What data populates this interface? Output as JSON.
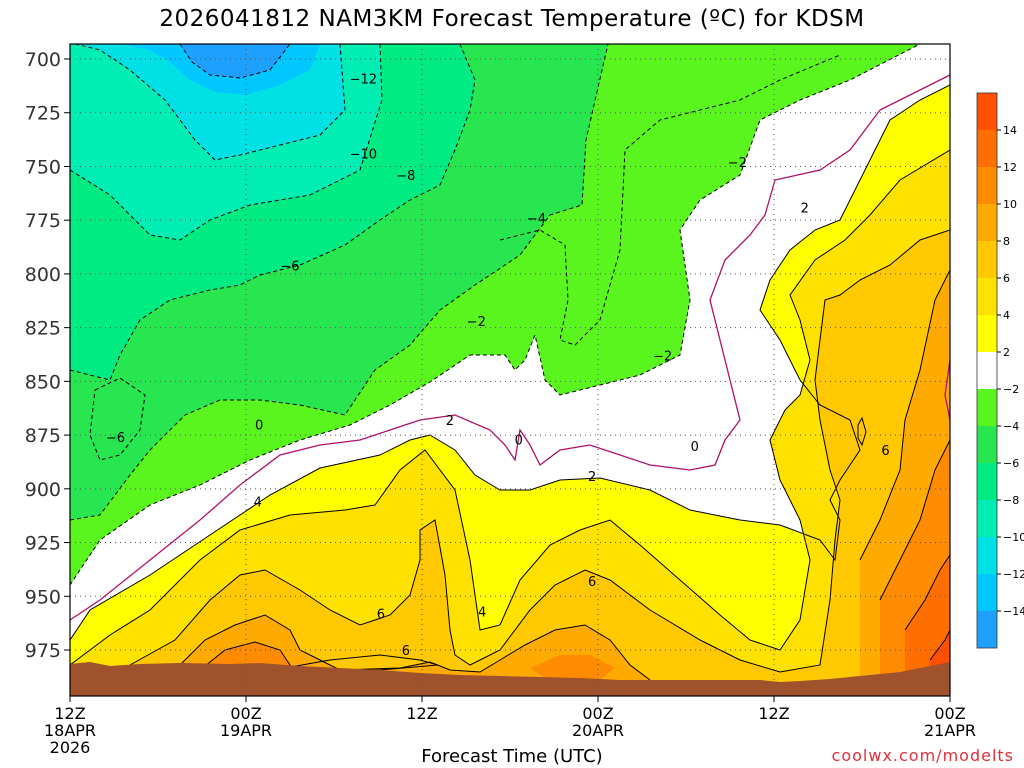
{
  "chart_data": {
    "type": "heatmap",
    "title": "2026041812 NAM3KM Forecast Temperature (ºC) for KDSM",
    "xlabel": "Forecast Time (UTC)",
    "ylabel": "",
    "y_axis": {
      "label": "",
      "ticks": [
        700,
        725,
        750,
        775,
        800,
        825,
        850,
        875,
        900,
        925,
        950,
        975
      ],
      "range": [
        700,
        990
      ],
      "inverted": true
    },
    "x_axis": {
      "range_hours": [
        0,
        60
      ],
      "ticks": [
        {
          "hour": 0,
          "lines": [
            "12Z",
            "18APR",
            "2026"
          ]
        },
        {
          "hour": 12,
          "lines": [
            "00Z",
            "19APR"
          ]
        },
        {
          "hour": 24,
          "lines": [
            "12Z"
          ]
        },
        {
          "hour": 36,
          "lines": [
            "00Z",
            "20APR"
          ]
        },
        {
          "hour": 48,
          "lines": [
            "12Z"
          ]
        },
        {
          "hour": 60,
          "lines": [
            "00Z",
            "21APR"
          ]
        }
      ]
    },
    "grid": true,
    "legend": {
      "position": "right",
      "bins": [
        {
          "color": "#1ea0ff",
          "label": ""
        },
        {
          "color": "#00c8ff",
          "label": "−14"
        },
        {
          "color": "#00e1e6",
          "label": "−12"
        },
        {
          "color": "#00eeb4",
          "label": "−10"
        },
        {
          "color": "#00eb82",
          "label": "−8"
        },
        {
          "color": "#28e650",
          "label": "−6"
        },
        {
          "color": "#5af51e",
          "label": "−4"
        },
        {
          "color": "#ffffff",
          "label": "−2"
        },
        {
          "color": "#ffff00",
          "label": "2"
        },
        {
          "color": "#ffe100",
          "label": "4"
        },
        {
          "color": "#ffc800",
          "label": "6"
        },
        {
          "color": "#ffaa00",
          "label": "8"
        },
        {
          "color": "#ff8c00",
          "label": "10"
        },
        {
          "color": "#ff6e00",
          "label": "12"
        },
        {
          "color": "#ff5000",
          "label": "14"
        }
      ]
    },
    "zero_contour_color": "#b0106a",
    "ground_color": "#a0522d",
    "contour_labels": [
      {
        "text": "−12",
        "hour": 20.0,
        "p": 709
      },
      {
        "text": "−10",
        "hour": 20.0,
        "p": 744
      },
      {
        "text": "−8",
        "hour": 22.9,
        "p": 754
      },
      {
        "text": "−6",
        "hour": 15.0,
        "p": 796
      },
      {
        "text": "−6",
        "hour": 3.1,
        "p": 876
      },
      {
        "text": "−4",
        "hour": 31.8,
        "p": 774
      },
      {
        "text": "−2",
        "hour": 27.7,
        "p": 822
      },
      {
        "text": "−2",
        "hour": 40.4,
        "p": 838
      },
      {
        "text": "−2",
        "hour": 45.5,
        "p": 748
      },
      {
        "text": "2",
        "hour": 50.1,
        "p": 769
      },
      {
        "text": "2",
        "hour": 25.9,
        "p": 868
      },
      {
        "text": "2",
        "hour": 35.6,
        "p": 894
      },
      {
        "text": "0",
        "hour": 12.9,
        "p": 870
      },
      {
        "text": "0",
        "hour": 30.6,
        "p": 877
      },
      {
        "text": "0",
        "hour": 42.6,
        "p": 880
      },
      {
        "text": "4",
        "hour": 12.8,
        "p": 906
      },
      {
        "text": "4",
        "hour": 28.1,
        "p": 957
      },
      {
        "text": "6",
        "hour": 21.2,
        "p": 958
      },
      {
        "text": "6",
        "hour": 35.6,
        "p": 943
      },
      {
        "text": "6",
        "hour": 22.9,
        "p": 975
      },
      {
        "text": "6",
        "hour": 55.6,
        "p": 882
      }
    ],
    "sample_values": [
      {
        "hour": 10,
        "p": 712,
        "t": -14
      },
      {
        "hour": 15,
        "p": 730,
        "t": -12
      },
      {
        "hour": 5,
        "p": 790,
        "t": -8
      },
      {
        "hour": 30,
        "p": 800,
        "t": -4
      },
      {
        "hour": 20,
        "p": 880,
        "t": 0
      },
      {
        "hour": 10,
        "p": 960,
        "t": 6
      },
      {
        "hour": 36,
        "p": 965,
        "t": 7
      },
      {
        "hour": 58,
        "p": 960,
        "t": 12
      }
    ]
  },
  "credit": "coolwx.com/modelts"
}
